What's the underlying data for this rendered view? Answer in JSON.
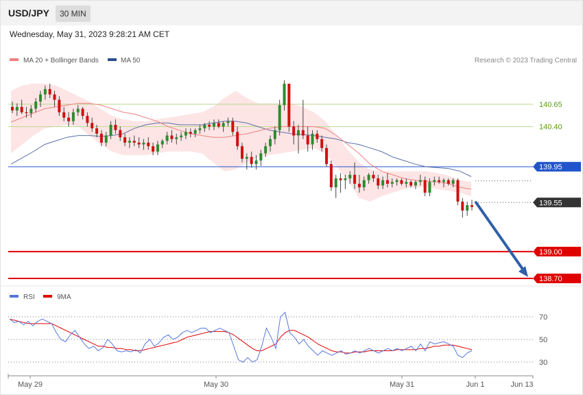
{
  "header": {
    "symbol": "USD/JPY",
    "timeframe": "30 MIN",
    "datetime": "Wednesday, May 31, 2023 9:28:21 AM CET"
  },
  "legend": {
    "ma20": "MA 20 + Bollinger Bands",
    "ma50": "MA 50",
    "rsi": "RSI",
    "ma9": "9MA",
    "credit": "Research © 2023 Trading Central"
  },
  "colors": {
    "bollinger_fill": "#fde2e2",
    "ma20": "#f08080",
    "ma50": "#5a6fa8",
    "candle_up": "#2e8b2e",
    "candle_down": "#d01010",
    "green_level": "#b8d98a",
    "blue_level": "#2255cc",
    "red_level": "#e00000",
    "arrow": "#2f5fa8",
    "rsi": "#5577dd",
    "rsi_ma": "#e00000"
  },
  "chart_data": [
    {
      "type": "candlestick",
      "x_tick_labels": [
        "May 29",
        "May 30",
        "May 31",
        "Jun 1",
        "Jun 13"
      ],
      "ylim": [
        138.7,
        140.95
      ],
      "levels": [
        {
          "value": 140.65,
          "label": "140.65",
          "style": "green-line"
        },
        {
          "value": 140.4,
          "label": "140.40",
          "style": "green-line"
        },
        {
          "value": 139.95,
          "label": "139.95",
          "style": "blue-tag"
        },
        {
          "value": 139.55,
          "label": "139.55",
          "style": "dark-tag"
        },
        {
          "value": 139.0,
          "label": "139.00",
          "style": "red-tag"
        },
        {
          "value": 138.7,
          "label": "138.70",
          "style": "red-tag"
        }
      ],
      "forecast_arrow": {
        "from": 139.55,
        "to": 138.7
      },
      "candles": [
        [
          140.62,
          140.68,
          140.55,
          140.58
        ],
        [
          140.58,
          140.66,
          140.52,
          140.62
        ],
        [
          140.62,
          140.7,
          140.54,
          140.56
        ],
        [
          140.56,
          140.62,
          140.5,
          140.55
        ],
        [
          140.55,
          140.64,
          140.5,
          140.6
        ],
        [
          140.6,
          140.72,
          140.56,
          140.68
        ],
        [
          140.68,
          140.8,
          140.62,
          140.76
        ],
        [
          140.76,
          140.86,
          140.7,
          140.82
        ],
        [
          140.82,
          140.88,
          140.72,
          140.76
        ],
        [
          140.76,
          140.8,
          140.62,
          140.7
        ],
        [
          140.7,
          140.74,
          140.52,
          140.56
        ],
        [
          140.56,
          140.62,
          140.46,
          140.5
        ],
        [
          140.5,
          140.56,
          140.4,
          140.46
        ],
        [
          140.46,
          140.6,
          140.42,
          140.56
        ],
        [
          140.56,
          140.64,
          140.52,
          140.6
        ],
        [
          140.6,
          140.62,
          140.48,
          140.52
        ],
        [
          140.52,
          140.56,
          140.4,
          140.44
        ],
        [
          140.44,
          140.5,
          140.34,
          140.38
        ],
        [
          140.38,
          140.42,
          140.28,
          140.32
        ],
        [
          140.32,
          140.36,
          140.18,
          140.22
        ],
        [
          140.22,
          140.34,
          140.18,
          140.3
        ],
        [
          140.3,
          140.46,
          140.26,
          140.42
        ],
        [
          140.42,
          140.48,
          140.32,
          140.36
        ],
        [
          140.36,
          140.4,
          140.24,
          140.28
        ],
        [
          140.28,
          140.32,
          140.18,
          140.22
        ],
        [
          140.22,
          140.28,
          140.16,
          140.24
        ],
        [
          140.24,
          140.3,
          140.18,
          140.22
        ],
        [
          140.22,
          140.28,
          140.16,
          140.2
        ],
        [
          140.2,
          140.26,
          140.14,
          140.22
        ],
        [
          140.22,
          140.28,
          140.14,
          140.18
        ],
        [
          140.18,
          140.22,
          140.08,
          140.12
        ],
        [
          140.12,
          140.24,
          140.08,
          140.2
        ],
        [
          140.2,
          140.26,
          140.16,
          140.24
        ],
        [
          140.24,
          140.34,
          140.2,
          140.3
        ],
        [
          140.3,
          140.36,
          140.22,
          140.26
        ],
        [
          140.26,
          140.32,
          140.2,
          140.28
        ],
        [
          140.28,
          140.34,
          140.24,
          140.3
        ],
        [
          140.3,
          140.38,
          140.26,
          140.34
        ],
        [
          140.34,
          140.38,
          140.28,
          140.32
        ],
        [
          140.32,
          140.38,
          140.28,
          140.36
        ],
        [
          140.36,
          140.42,
          140.32,
          140.38
        ],
        [
          140.38,
          140.44,
          140.34,
          140.42
        ],
        [
          140.42,
          140.46,
          140.36,
          140.4
        ],
        [
          140.4,
          140.48,
          140.36,
          140.44
        ],
        [
          140.44,
          140.48,
          140.38,
          140.4
        ],
        [
          140.4,
          140.46,
          140.34,
          140.44
        ],
        [
          140.44,
          140.5,
          140.4,
          140.46
        ],
        [
          140.46,
          140.5,
          140.3,
          140.34
        ],
        [
          140.34,
          140.4,
          140.14,
          140.18
        ],
        [
          140.18,
          140.22,
          140.0,
          140.04
        ],
        [
          140.04,
          140.1,
          139.92,
          140.06
        ],
        [
          140.06,
          140.12,
          139.94,
          139.98
        ],
        [
          139.98,
          140.08,
          139.92,
          140.02
        ],
        [
          140.02,
          140.14,
          139.96,
          140.1
        ],
        [
          140.1,
          140.22,
          140.06,
          140.18
        ],
        [
          140.18,
          140.3,
          140.12,
          140.26
        ],
        [
          140.26,
          140.4,
          140.2,
          140.36
        ],
        [
          140.36,
          140.7,
          140.3,
          140.64
        ],
        [
          140.64,
          140.92,
          140.58,
          140.88
        ],
        [
          140.88,
          140.86,
          140.34,
          140.4
        ],
        [
          140.4,
          140.46,
          140.2,
          140.3
        ],
        [
          140.3,
          140.42,
          140.1,
          140.36
        ],
        [
          140.36,
          140.7,
          140.26,
          140.3
        ],
        [
          140.3,
          140.4,
          140.12,
          140.2
        ],
        [
          140.2,
          140.36,
          140.14,
          140.32
        ],
        [
          140.32,
          140.36,
          140.22,
          140.26
        ],
        [
          140.26,
          140.3,
          140.12,
          140.16
        ],
        [
          140.16,
          140.2,
          139.95,
          139.98
        ],
        [
          139.98,
          140.02,
          139.68,
          139.72
        ],
        [
          139.72,
          139.86,
          139.6,
          139.82
        ],
        [
          139.82,
          139.88,
          139.66,
          139.8
        ],
        [
          139.8,
          139.86,
          139.7,
          139.82
        ],
        [
          139.82,
          139.9,
          139.76,
          139.86
        ],
        [
          139.86,
          140.0,
          139.7,
          139.76
        ],
        [
          139.76,
          139.86,
          139.66,
          139.72
        ],
        [
          139.72,
          139.84,
          139.68,
          139.8
        ],
        [
          139.8,
          139.88,
          139.76,
          139.86
        ],
        [
          139.86,
          139.9,
          139.78,
          139.82
        ],
        [
          139.82,
          139.86,
          139.7,
          139.74
        ],
        [
          139.74,
          139.84,
          139.7,
          139.8
        ],
        [
          139.8,
          139.88,
          139.72,
          139.76
        ],
        [
          139.76,
          139.82,
          139.72,
          139.78
        ],
        [
          139.78,
          139.82,
          139.74,
          139.8
        ],
        [
          139.8,
          139.82,
          139.74,
          139.76
        ],
        [
          139.76,
          139.82,
          139.72,
          139.78
        ],
        [
          139.78,
          139.8,
          139.72,
          139.74
        ],
        [
          139.74,
          139.8,
          139.7,
          139.78
        ],
        [
          139.78,
          139.86,
          139.74,
          139.8
        ],
        [
          139.8,
          139.84,
          139.62,
          139.66
        ],
        [
          139.66,
          139.82,
          139.62,
          139.78
        ],
        [
          139.78,
          139.84,
          139.74,
          139.8
        ],
        [
          139.8,
          139.84,
          139.76,
          139.78
        ],
        [
          139.78,
          139.82,
          139.72,
          139.8
        ],
        [
          139.8,
          139.82,
          139.74,
          139.76
        ],
        [
          139.76,
          139.82,
          139.72,
          139.8
        ],
        [
          139.8,
          139.82,
          139.52,
          139.56
        ],
        [
          139.56,
          139.6,
          139.38,
          139.46
        ],
        [
          139.46,
          139.56,
          139.4,
          139.52
        ],
        [
          139.52,
          139.58,
          139.46,
          139.5
        ]
      ],
      "ma20": [
        140.45,
        140.5,
        140.55,
        140.6,
        140.62,
        140.64,
        140.66,
        140.66,
        140.64,
        140.6,
        140.56,
        140.54,
        140.5,
        140.46,
        140.4,
        140.36,
        140.32,
        140.3,
        140.28,
        140.28,
        140.3,
        140.32,
        140.35,
        140.38,
        140.4,
        140.4,
        140.4,
        140.4,
        140.38,
        140.3,
        140.2,
        140.1,
        139.98,
        139.9,
        139.86,
        139.82,
        139.8,
        139.79,
        139.78,
        139.76,
        139.72,
        139.7
      ],
      "bollinger_upper": [
        140.8,
        140.86,
        140.88,
        140.88,
        140.86,
        140.8,
        140.74,
        140.68,
        140.6,
        140.52,
        140.48,
        140.46,
        140.46,
        140.48,
        140.5,
        140.52,
        140.54,
        140.56,
        140.62,
        140.72,
        140.8,
        140.72,
        140.66,
        140.66,
        140.66,
        140.66,
        140.62,
        140.56,
        140.46,
        140.3,
        140.14,
        140.0,
        139.92,
        139.9,
        139.9,
        139.9,
        139.9,
        139.9,
        139.88,
        139.85,
        139.8,
        139.78
      ],
      "bollinger_lower": [
        140.1,
        140.2,
        140.3,
        140.38,
        140.4,
        140.42,
        140.4,
        140.3,
        140.2,
        140.12,
        140.08,
        140.08,
        140.08,
        140.1,
        140.12,
        140.12,
        140.12,
        140.1,
        140.0,
        139.9,
        139.92,
        140.0,
        140.06,
        140.08,
        140.1,
        140.12,
        140.14,
        140.16,
        140.1,
        139.95,
        139.8,
        139.6,
        139.56,
        139.62,
        139.66,
        139.7,
        139.72,
        139.72,
        139.7,
        139.68,
        139.66,
        139.62
      ],
      "ma50": [
        139.98,
        140.05,
        140.12,
        140.2,
        140.24,
        140.28,
        140.3,
        140.3,
        140.29,
        140.3,
        140.32,
        140.38,
        140.42,
        140.44,
        140.44,
        140.42,
        140.42,
        140.42,
        140.44,
        140.46,
        140.46,
        140.44,
        140.4,
        140.36,
        140.34,
        140.32,
        140.31,
        140.3,
        140.28,
        140.26,
        140.22,
        140.2,
        140.16,
        140.12,
        140.06,
        140.02,
        139.98,
        139.95,
        139.94,
        139.93,
        139.9,
        139.84
      ]
    },
    {
      "type": "line",
      "name": "RSI",
      "ylim": [
        20,
        80
      ],
      "y_ticks": [
        30,
        50,
        70
      ],
      "rsi": [
        68,
        65,
        66,
        63,
        66,
        62,
        66,
        68,
        66,
        64,
        56,
        50,
        48,
        54,
        58,
        52,
        46,
        42,
        44,
        40,
        43,
        50,
        46,
        40,
        39,
        40,
        39,
        41,
        38,
        46,
        50,
        44,
        47,
        52,
        54,
        50,
        52,
        56,
        58,
        56,
        58,
        60,
        60,
        56,
        58,
        60,
        58,
        56,
        44,
        32,
        30,
        34,
        30,
        32,
        44,
        60,
        52,
        42,
        70,
        74,
        56,
        52,
        46,
        50,
        44,
        40,
        36,
        40,
        38,
        36,
        38,
        40,
        37,
        38,
        40,
        38,
        40,
        42,
        40,
        38,
        40,
        42,
        40,
        42,
        40,
        42,
        44,
        40,
        46,
        40,
        48,
        46,
        47,
        48,
        46,
        44,
        36,
        34,
        38,
        40
      ],
      "rsi_ma": [
        68,
        67,
        66,
        65,
        64,
        64,
        64,
        64,
        64,
        64,
        62,
        60,
        58,
        56,
        54,
        52,
        50,
        48,
        46,
        44,
        44,
        43,
        43,
        42,
        42,
        41,
        41,
        40,
        40,
        41,
        42,
        43,
        44,
        45,
        46,
        47,
        48,
        50,
        52,
        53,
        54,
        55,
        56,
        57,
        57,
        57,
        57,
        56,
        54,
        51,
        48,
        45,
        42,
        40,
        40,
        42,
        44,
        46,
        52,
        56,
        58,
        58,
        56,
        54,
        52,
        49,
        46,
        44,
        42,
        40,
        39,
        39,
        38,
        38,
        39,
        39,
        39,
        40,
        40,
        40,
        40,
        40,
        40,
        41,
        41,
        41,
        41,
        41,
        42,
        42,
        43,
        44,
        44,
        45,
        45,
        45,
        44,
        43,
        42,
        41
      ]
    }
  ]
}
